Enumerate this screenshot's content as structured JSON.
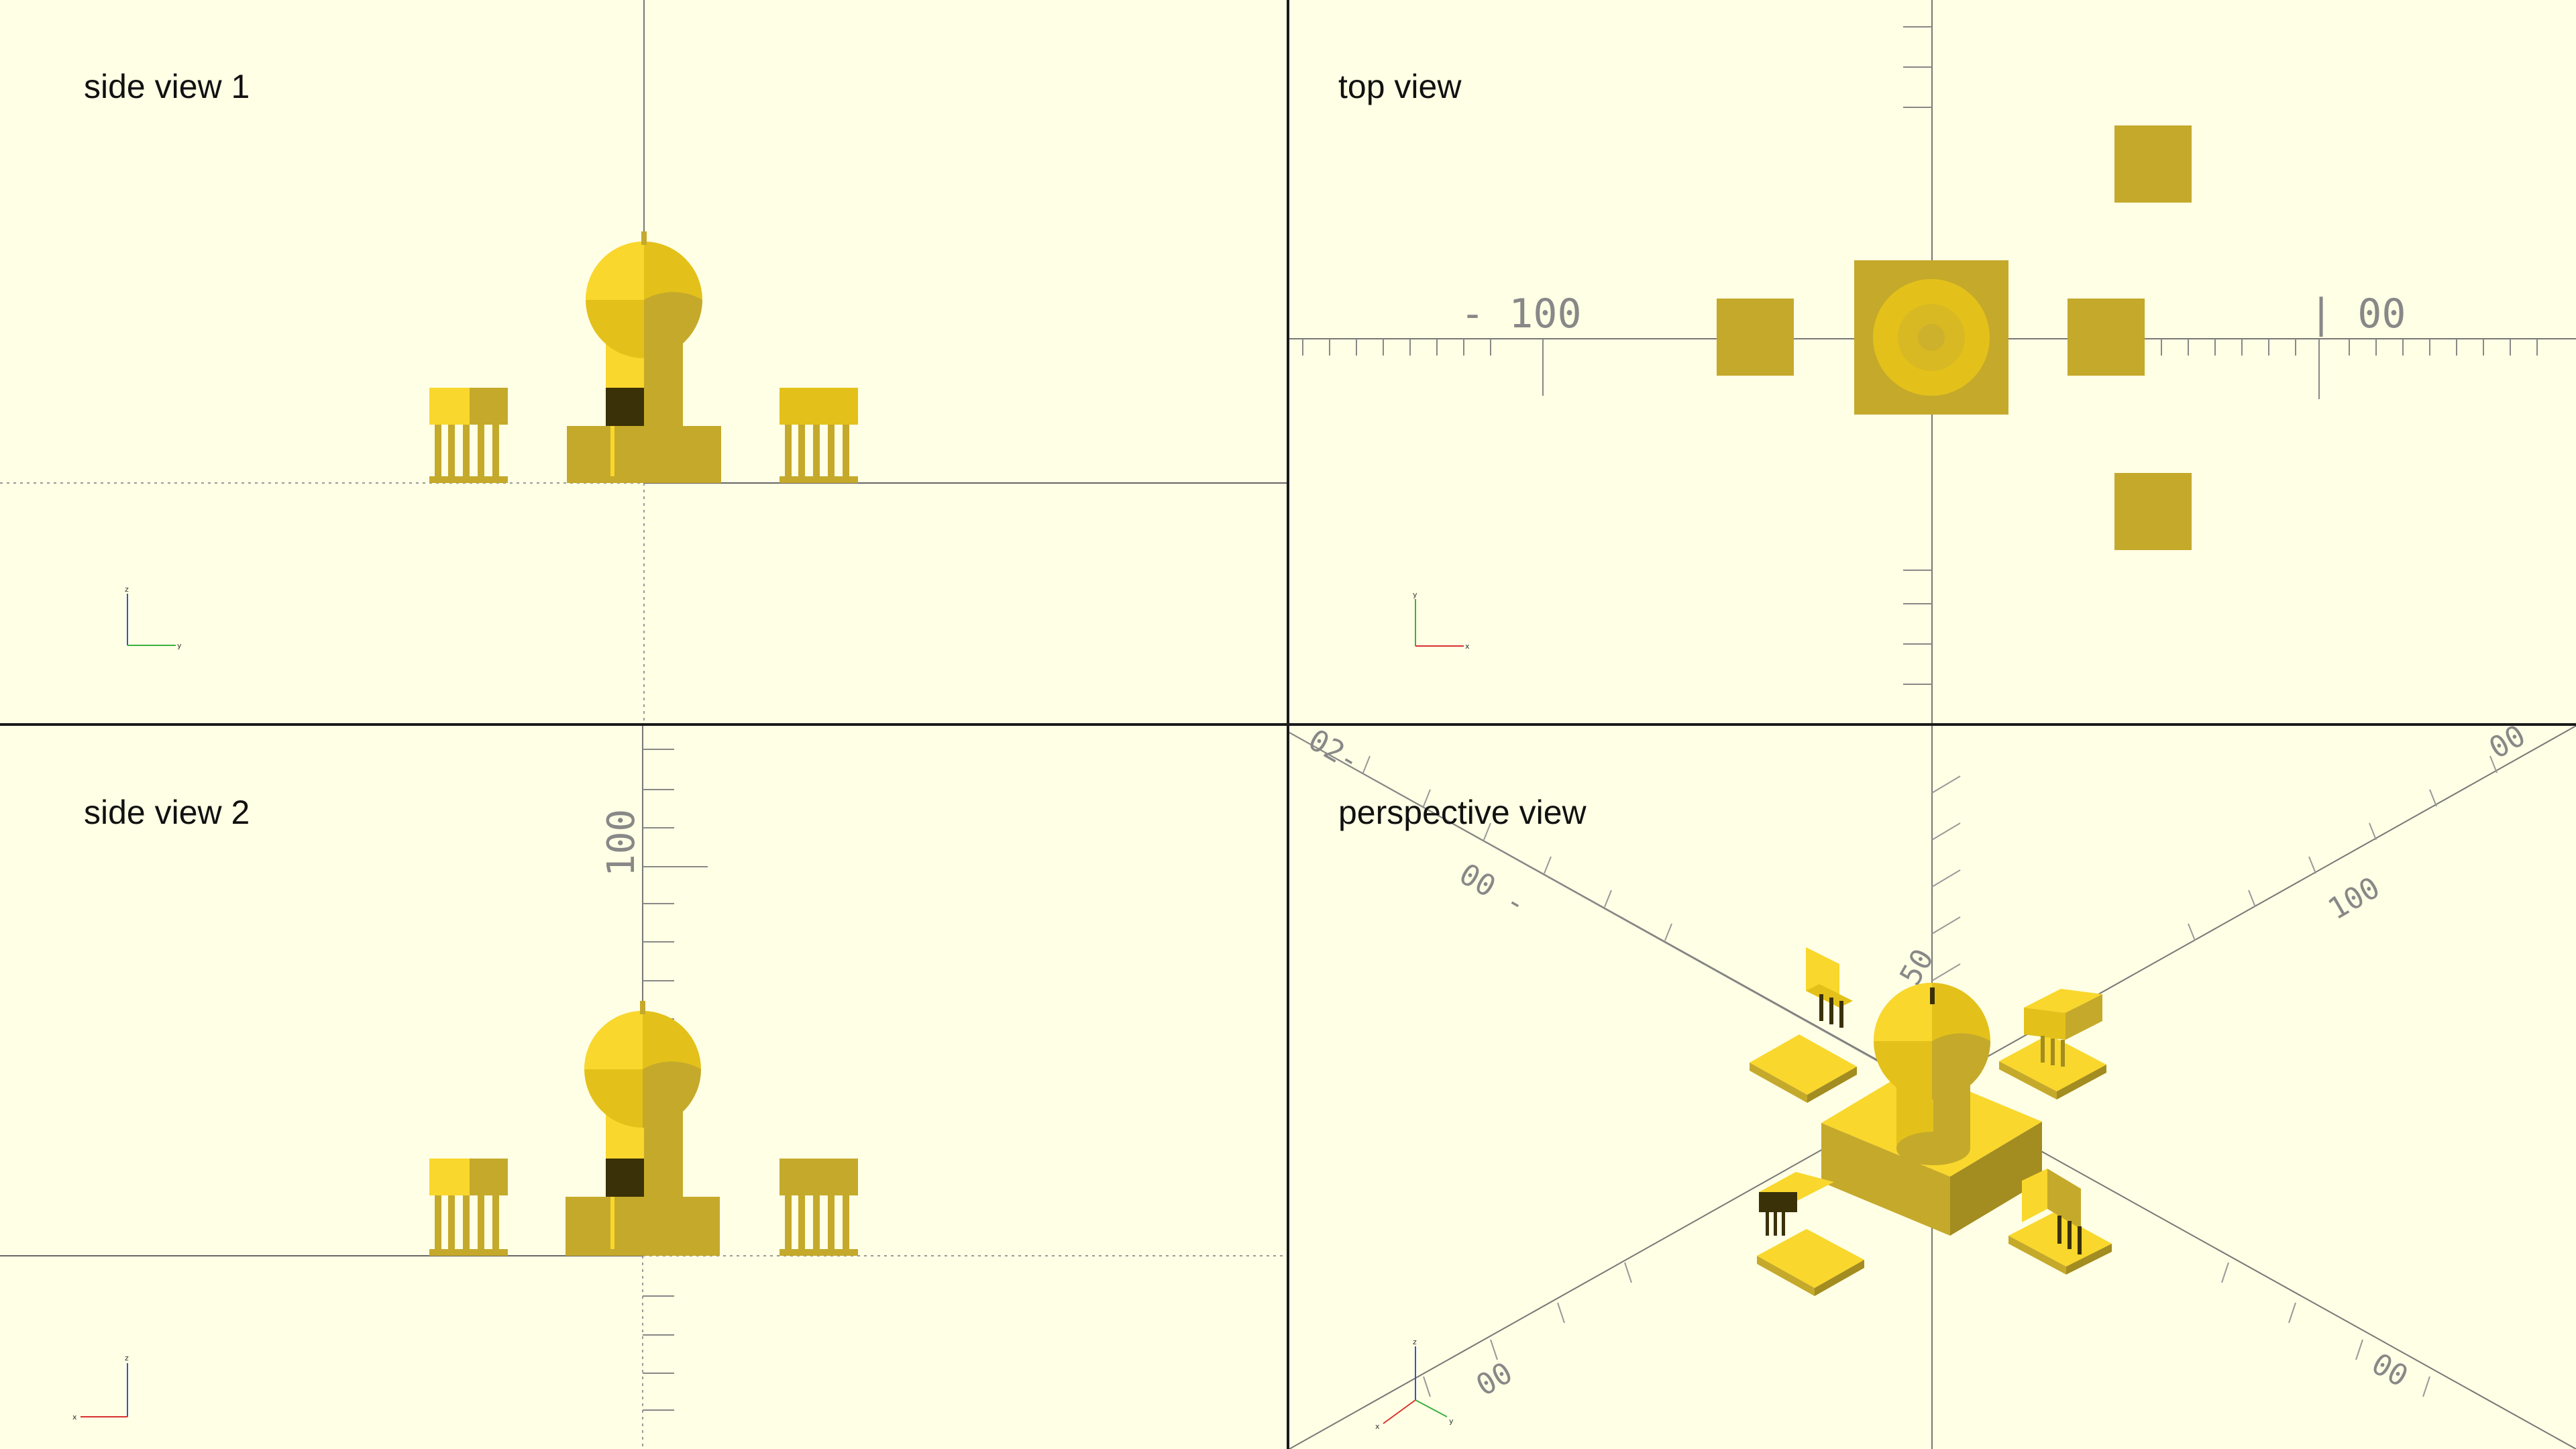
{
  "viewports": {
    "side1": {
      "title": "side view 1"
    },
    "top": {
      "title": "top view"
    },
    "side2": {
      "title": "side view 2"
    },
    "perspective": {
      "title": "perspective view"
    }
  },
  "axis_labels": {
    "top_left": "- 100",
    "top_right": "| 00",
    "side2_vertical": "100",
    "persp_y": "50",
    "persp_left": "00 -",
    "persp_right": "100",
    "persp_bottom_left": "00",
    "persp_bottom_right": "00",
    "persp_top_left": "02-",
    "persp_top_right": "00"
  },
  "colors": {
    "background": "#ffffe5",
    "model_light": "#f9d72c",
    "model_mid": "#e3c11a",
    "model_dark": "#c5a92b",
    "model_shadow": "#3a3108",
    "axis_x": "#d9302f",
    "axis_y": "#3cb043",
    "axis_z": "#3552d9"
  }
}
